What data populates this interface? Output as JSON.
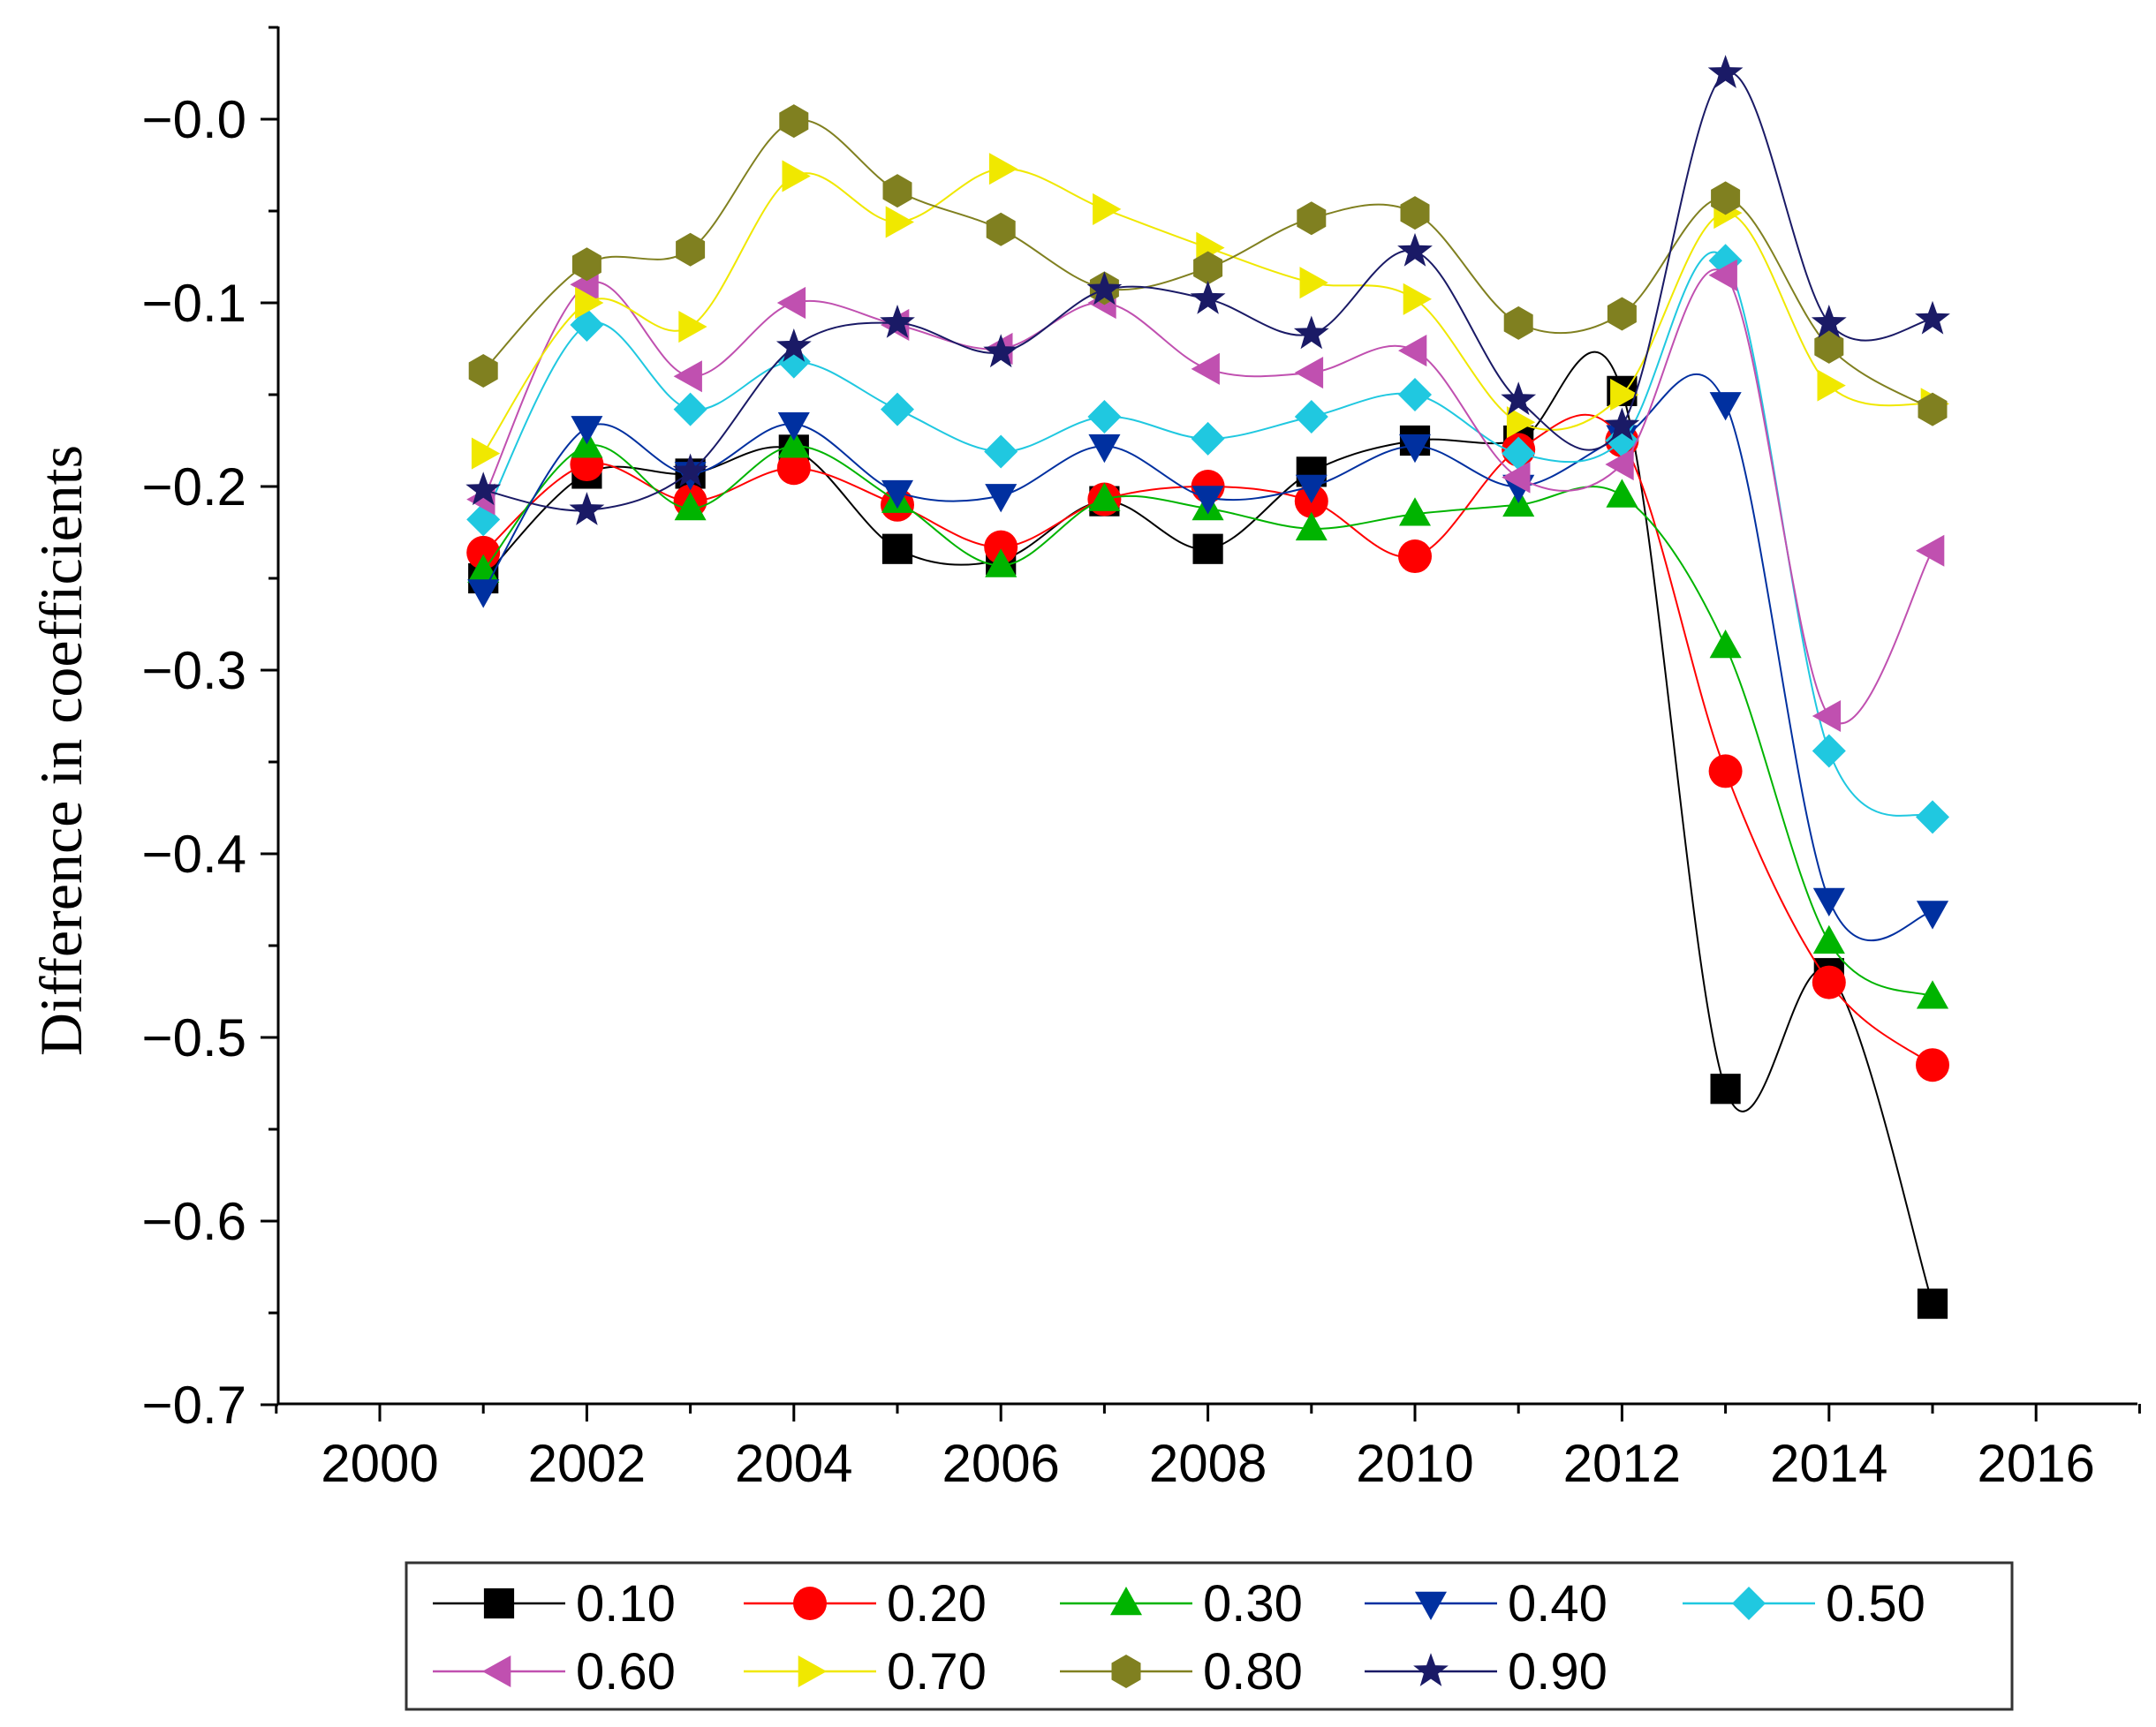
{
  "chart_data": {
    "type": "line",
    "title": "",
    "xlabel": "",
    "ylabel": "Difference in coefficients",
    "xlim": [
      1999,
      2017
    ],
    "ylim": [
      -0.7,
      0.05
    ],
    "x_ticks": [
      2000,
      2002,
      2004,
      2006,
      2008,
      2010,
      2012,
      2014,
      2016
    ],
    "x_tick_labels": [
      "2000",
      "2002",
      "2004",
      "2006",
      "2008",
      "2010",
      "2012",
      "2014",
      "2016"
    ],
    "y_ticks": [
      0.0,
      -0.1,
      -0.2,
      -0.3,
      -0.4,
      -0.5,
      -0.6,
      -0.7
    ],
    "y_tick_labels": [
      "−0.0",
      "−0.1",
      "−0.2",
      "−0.3",
      "−0.4",
      "−0.5",
      "−0.6",
      "−0.7"
    ],
    "grid": false,
    "legend_position": "bottom",
    "x": [
      2001,
      2002,
      2003,
      2004,
      2005,
      2006,
      2007,
      2008,
      2009,
      2010,
      2011,
      2012,
      2013,
      2014,
      2015
    ],
    "series": [
      {
        "name": "0.10",
        "color": "#000000",
        "marker": "square",
        "values": [
          -0.25,
          -0.193,
          -0.193,
          -0.18,
          -0.234,
          -0.24,
          -0.208,
          -0.234,
          -0.192,
          -0.175,
          -0.175,
          -0.148,
          -0.528,
          -0.465,
          -0.645
        ]
      },
      {
        "name": "0.20",
        "color": "#ff0000",
        "marker": "circle",
        "values": [
          -0.236,
          -0.188,
          -0.208,
          -0.19,
          -0.21,
          -0.233,
          -0.207,
          -0.2,
          -0.208,
          -0.238,
          -0.18,
          -0.175,
          -0.355,
          -0.47,
          -0.515
        ]
      },
      {
        "name": "0.30",
        "color": "#00b400",
        "marker": "triangle-up",
        "values": [
          -0.246,
          -0.178,
          -0.212,
          -0.178,
          -0.208,
          -0.243,
          -0.207,
          -0.212,
          -0.223,
          -0.215,
          -0.21,
          -0.205,
          -0.287,
          -0.448,
          -0.478
        ]
      },
      {
        "name": "0.40",
        "color": "#0030a0",
        "marker": "triangle-down",
        "values": [
          -0.257,
          -0.168,
          -0.193,
          -0.166,
          -0.203,
          -0.205,
          -0.178,
          -0.206,
          -0.2,
          -0.178,
          -0.2,
          -0.173,
          -0.155,
          -0.425,
          -0.432
        ]
      },
      {
        "name": "0.50",
        "color": "#20c8e0",
        "marker": "diamond",
        "values": [
          -0.218,
          -0.112,
          -0.158,
          -0.132,
          -0.158,
          -0.181,
          -0.162,
          -0.174,
          -0.162,
          -0.15,
          -0.182,
          -0.175,
          -0.077,
          -0.344,
          -0.38
        ]
      },
      {
        "name": "0.60",
        "color": "#c050b0",
        "marker": "triangle-left",
        "values": [
          -0.207,
          -0.09,
          -0.14,
          -0.1,
          -0.112,
          -0.125,
          -0.1,
          -0.136,
          -0.138,
          -0.126,
          -0.195,
          -0.188,
          -0.085,
          -0.325,
          -0.235
        ]
      },
      {
        "name": "0.70",
        "color": "#f0e800",
        "marker": "triangle-right",
        "values": [
          -0.182,
          -0.1,
          -0.113,
          -0.031,
          -0.056,
          -0.027,
          -0.049,
          -0.07,
          -0.089,
          -0.098,
          -0.165,
          -0.15,
          -0.051,
          -0.145,
          -0.155
        ]
      },
      {
        "name": "0.80",
        "color": "#808020",
        "marker": "hexagon",
        "values": [
          -0.137,
          -0.079,
          -0.071,
          -0.001,
          -0.039,
          -0.06,
          -0.092,
          -0.081,
          -0.054,
          -0.051,
          -0.111,
          -0.106,
          -0.043,
          -0.124,
          -0.158
        ]
      },
      {
        "name": "0.90",
        "color": "#1a1a66",
        "marker": "star",
        "values": [
          -0.202,
          -0.213,
          -0.192,
          -0.124,
          -0.111,
          -0.127,
          -0.093,
          -0.098,
          -0.117,
          -0.072,
          -0.153,
          -0.167,
          0.025,
          -0.111,
          -0.109
        ]
      }
    ]
  }
}
